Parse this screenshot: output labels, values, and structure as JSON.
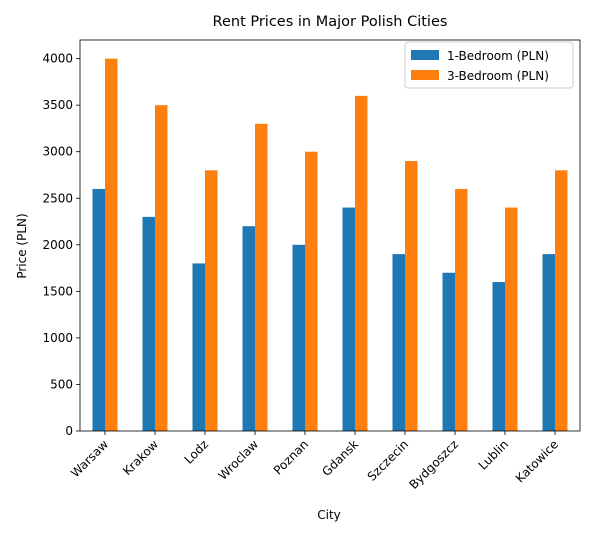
{
  "chart_data": {
    "type": "bar",
    "title": "Rent Prices in Major Polish Cities",
    "xlabel": "City",
    "ylabel": "Price (PLN)",
    "categories": [
      "Warsaw",
      "Krakow",
      "Lodz",
      "Wroclaw",
      "Poznan",
      "Gdansk",
      "Szczecin",
      "Bydgoszcz",
      "Lublin",
      "Katowice"
    ],
    "series": [
      {
        "name": "1-Bedroom (PLN)",
        "color": "#1f77b4",
        "values": [
          2600,
          2300,
          1800,
          2200,
          2000,
          2400,
          1900,
          1700,
          1600,
          1900
        ]
      },
      {
        "name": "3-Bedroom (PLN)",
        "color": "#ff7f0e",
        "values": [
          4000,
          3500,
          2800,
          3300,
          3000,
          3600,
          2900,
          2600,
          2400,
          2800
        ]
      }
    ],
    "ylim": [
      0,
      4200
    ],
    "yticks": [
      0,
      500,
      1000,
      1500,
      2000,
      2500,
      3000,
      3500,
      4000
    ],
    "grid": false,
    "legend_position": "top-right"
  }
}
